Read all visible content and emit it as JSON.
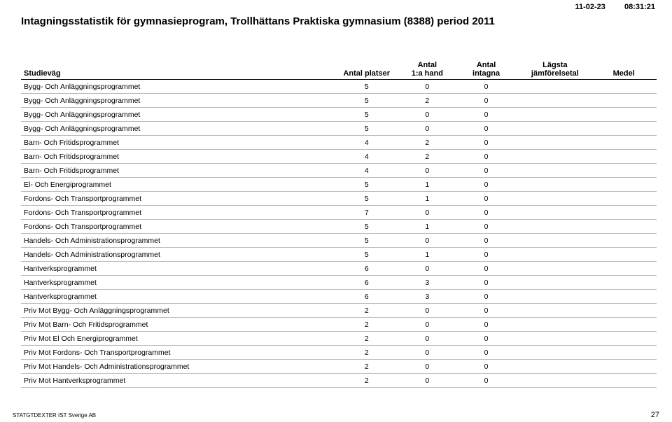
{
  "timestamp": {
    "date": "11-02-23",
    "time": "08:31:21"
  },
  "title": "Intagningsstatistik för gymnasieprogram,  Trollhättans Praktiska gymnasium (8388) period 2011",
  "columns": {
    "c0": "Studieväg",
    "c1": "Antal platser",
    "c2_line1": "Antal",
    "c2_line2": "1:a hand",
    "c3_line1": "Antal",
    "c3_line2": "intagna",
    "c4_line1": "Lägsta",
    "c4_line2": "jämförelsetal",
    "c5": "Medel"
  },
  "rows": [
    {
      "name": "Bygg- Och Anläggningsprogrammet",
      "p": "5",
      "h": "0",
      "i": "0",
      "j": "",
      "m": ""
    },
    {
      "name": "Bygg- Och Anläggningsprogrammet",
      "p": "5",
      "h": "2",
      "i": "0",
      "j": "",
      "m": ""
    },
    {
      "name": "Bygg- Och Anläggningsprogrammet",
      "p": "5",
      "h": "0",
      "i": "0",
      "j": "",
      "m": ""
    },
    {
      "name": "Bygg- Och Anläggningsprogrammet",
      "p": "5",
      "h": "0",
      "i": "0",
      "j": "",
      "m": ""
    },
    {
      "name": "Barn- Och Fritidsprogrammet",
      "p": "4",
      "h": "2",
      "i": "0",
      "j": "",
      "m": ""
    },
    {
      "name": "Barn- Och Fritidsprogrammet",
      "p": "4",
      "h": "2",
      "i": "0",
      "j": "",
      "m": ""
    },
    {
      "name": "Barn- Och Fritidsprogrammet",
      "p": "4",
      "h": "0",
      "i": "0",
      "j": "",
      "m": ""
    },
    {
      "name": "El- Och Energiprogrammet",
      "p": "5",
      "h": "1",
      "i": "0",
      "j": "",
      "m": ""
    },
    {
      "name": "Fordons- Och Transportprogrammet",
      "p": "5",
      "h": "1",
      "i": "0",
      "j": "",
      "m": ""
    },
    {
      "name": "Fordons- Och Transportprogrammet",
      "p": "7",
      "h": "0",
      "i": "0",
      "j": "",
      "m": ""
    },
    {
      "name": "Fordons- Och Transportprogrammet",
      "p": "5",
      "h": "1",
      "i": "0",
      "j": "",
      "m": ""
    },
    {
      "name": "Handels- Och Administrationsprogrammet",
      "p": "5",
      "h": "0",
      "i": "0",
      "j": "",
      "m": ""
    },
    {
      "name": "Handels- Och Administrationsprogrammet",
      "p": "5",
      "h": "1",
      "i": "0",
      "j": "",
      "m": ""
    },
    {
      "name": "Hantverksprogrammet",
      "p": "6",
      "h": "0",
      "i": "0",
      "j": "",
      "m": ""
    },
    {
      "name": "Hantverksprogrammet",
      "p": "6",
      "h": "3",
      "i": "0",
      "j": "",
      "m": ""
    },
    {
      "name": "Hantverksprogrammet",
      "p": "6",
      "h": "3",
      "i": "0",
      "j": "",
      "m": ""
    },
    {
      "name": "Priv Mot Bygg- Och Anläggningsprogrammet",
      "p": "2",
      "h": "0",
      "i": "0",
      "j": "",
      "m": ""
    },
    {
      "name": "Priv Mot Barn- Och Fritidsprogrammet",
      "p": "2",
      "h": "0",
      "i": "0",
      "j": "",
      "m": ""
    },
    {
      "name": "Priv Mot El Och Energiprogrammet",
      "p": "2",
      "h": "0",
      "i": "0",
      "j": "",
      "m": ""
    },
    {
      "name": "Priv Mot Fordons- Och Transportprogrammet",
      "p": "2",
      "h": "0",
      "i": "0",
      "j": "",
      "m": ""
    },
    {
      "name": "Priv Mot Handels- Och Administrationsprogrammet",
      "p": "2",
      "h": "0",
      "i": "0",
      "j": "",
      "m": ""
    },
    {
      "name": "Priv Mot Hantverksprogrammet",
      "p": "2",
      "h": "0",
      "i": "0",
      "j": "",
      "m": ""
    }
  ],
  "footer": {
    "left": "STATGTDEXTER IST Sverige AB",
    "page": "27"
  }
}
